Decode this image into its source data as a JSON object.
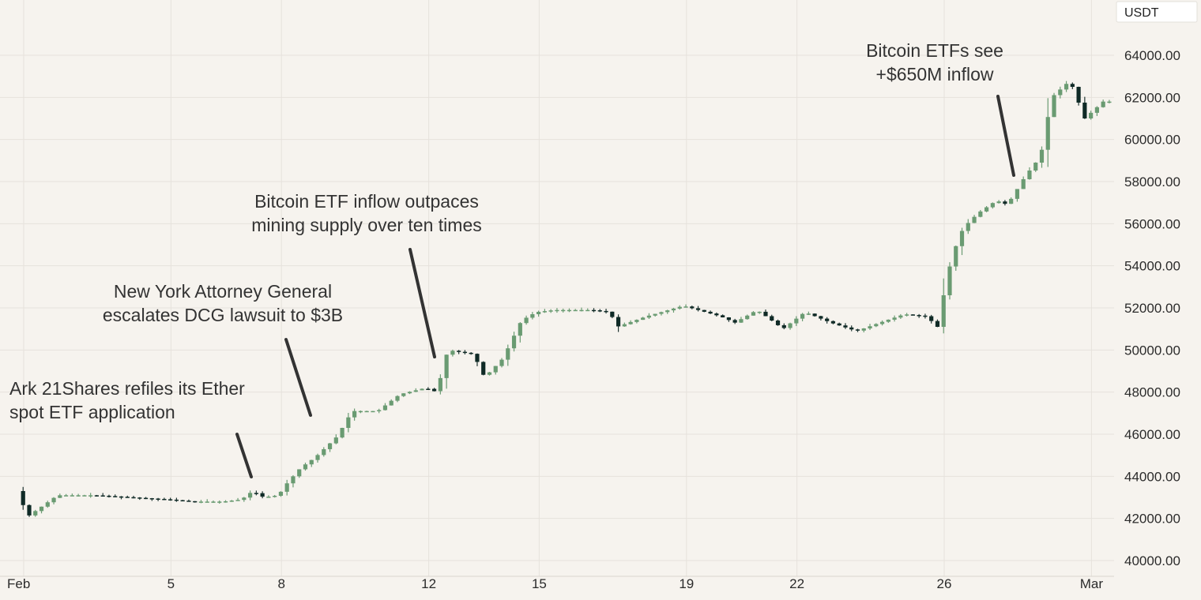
{
  "chart_data": {
    "type": "candlestick",
    "unit_label": "USDT",
    "ylim": [
      40000,
      65000
    ],
    "y_ticks": [
      "40000.00",
      "42000.00",
      "44000.00",
      "46000.00",
      "48000.00",
      "50000.00",
      "52000.00",
      "54000.00",
      "56000.00",
      "58000.00",
      "60000.00",
      "62000.00",
      "64000.00"
    ],
    "x_ticks": [
      {
        "label": "Feb",
        "x": 0
      },
      {
        "label": "5",
        "x": 4
      },
      {
        "label": "8",
        "x": 7
      },
      {
        "label": "12",
        "x": 11
      },
      {
        "label": "15",
        "x": 14
      },
      {
        "label": "19",
        "x": 18
      },
      {
        "label": "22",
        "x": 21
      },
      {
        "label": "26",
        "x": 25
      },
      {
        "label": "Mar",
        "x": 29
      }
    ],
    "grid": true,
    "colors": {
      "up": "#6a9b72",
      "down": "#0f2a26",
      "wick": "#555555",
      "grid": "#e6e2dc",
      "annotation_line": "#333333"
    },
    "annotations": [
      {
        "lines": [
          "Ark 21Shares refiles its Ether",
          "spot ETF application"
        ],
        "x": 7.0,
        "y": 43200
      },
      {
        "lines": [
          "New York Attorney General",
          "escalates DCG lawsuit to $3B"
        ],
        "x": 8.3,
        "y": 46800
      },
      {
        "lines": [
          "Bitcoin ETF inflow outpaces",
          "mining supply over ten times"
        ],
        "x": 11.6,
        "y": 49800
      },
      {
        "lines": [
          "Bitcoin ETFs see",
          "+$650M inflow"
        ],
        "x": 27.3,
        "y": 58200
      }
    ],
    "anchors": [
      [
        -0.1,
        43300
      ],
      [
        0.2,
        42100
      ],
      [
        1.0,
        43100
      ],
      [
        2.0,
        43100
      ],
      [
        3.0,
        43000
      ],
      [
        4.0,
        42900
      ],
      [
        4.7,
        42800
      ],
      [
        5.5,
        42800
      ],
      [
        6.0,
        42900
      ],
      [
        6.3,
        43300
      ],
      [
        6.6,
        43000
      ],
      [
        7.0,
        43100
      ],
      [
        7.2,
        43600
      ],
      [
        7.6,
        44400
      ],
      [
        8.0,
        44900
      ],
      [
        8.6,
        45900
      ],
      [
        9.0,
        47100
      ],
      [
        9.7,
        47100
      ],
      [
        10.3,
        47900
      ],
      [
        11.0,
        48200
      ],
      [
        11.3,
        48000
      ],
      [
        11.6,
        50000
      ],
      [
        12.3,
        49800
      ],
      [
        12.6,
        48700
      ],
      [
        13.1,
        49600
      ],
      [
        13.6,
        51400
      ],
      [
        14.0,
        51800
      ],
      [
        14.5,
        51900
      ],
      [
        15.5,
        51900
      ],
      [
        16.0,
        51800
      ],
      [
        16.2,
        51100
      ],
      [
        17.0,
        51600
      ],
      [
        18.0,
        52100
      ],
      [
        19.0,
        51600
      ],
      [
        19.4,
        51300
      ],
      [
        20.0,
        51900
      ],
      [
        20.4,
        51400
      ],
      [
        20.7,
        51000
      ],
      [
        21.3,
        51800
      ],
      [
        22.0,
        51300
      ],
      [
        22.7,
        50900
      ],
      [
        23.5,
        51400
      ],
      [
        24.0,
        51700
      ],
      [
        24.6,
        51600
      ],
      [
        24.9,
        51100
      ],
      [
        25.1,
        52900
      ],
      [
        25.3,
        54500
      ],
      [
        25.6,
        55800
      ],
      [
        26.0,
        56500
      ],
      [
        26.5,
        57100
      ],
      [
        26.8,
        56900
      ],
      [
        27.3,
        58300
      ],
      [
        27.7,
        59200
      ],
      [
        28.0,
        62000
      ],
      [
        28.5,
        62800
      ],
      [
        28.9,
        61000
      ],
      [
        29.4,
        61800
      ]
    ]
  }
}
